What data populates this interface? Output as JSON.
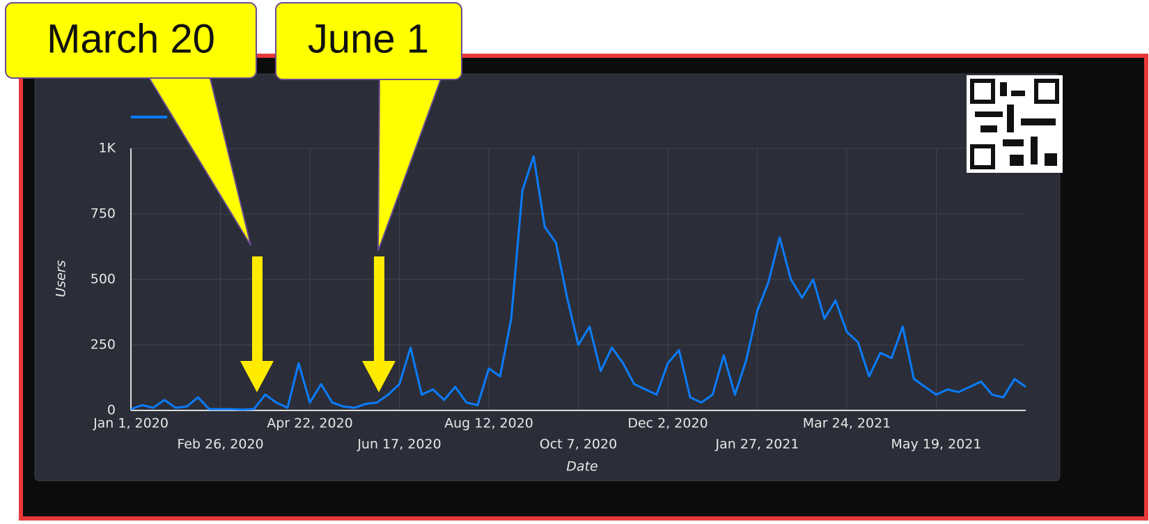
{
  "chart_data": {
    "type": "line",
    "annotations": [
      "March 20",
      "June 1"
    ],
    "x_label": "Date",
    "y_label": "Users",
    "x": [
      "2020-01-01",
      "2020-01-08",
      "2020-01-15",
      "2020-01-22",
      "2020-01-29",
      "2020-02-05",
      "2020-02-12",
      "2020-02-19",
      "2020-02-26",
      "2020-03-04",
      "2020-03-11",
      "2020-03-18",
      "2020-03-25",
      "2020-04-01",
      "2020-04-08",
      "2020-04-15",
      "2020-04-22",
      "2020-04-29",
      "2020-05-06",
      "2020-05-13",
      "2020-05-20",
      "2020-05-27",
      "2020-06-03",
      "2020-06-10",
      "2020-06-17",
      "2020-06-24",
      "2020-07-01",
      "2020-07-08",
      "2020-07-15",
      "2020-07-22",
      "2020-07-29",
      "2020-08-05",
      "2020-08-12",
      "2020-08-19",
      "2020-08-26",
      "2020-09-02",
      "2020-09-09",
      "2020-09-16",
      "2020-09-23",
      "2020-09-30",
      "2020-10-07",
      "2020-10-14",
      "2020-10-21",
      "2020-10-28",
      "2020-11-04",
      "2020-11-11",
      "2020-11-18",
      "2020-11-25",
      "2020-12-02",
      "2020-12-09",
      "2020-12-16",
      "2020-12-23",
      "2020-12-30",
      "2021-01-06",
      "2021-01-13",
      "2021-01-20",
      "2021-01-27",
      "2021-02-03",
      "2021-02-10",
      "2021-02-17",
      "2021-02-24",
      "2021-03-03",
      "2021-03-10",
      "2021-03-17",
      "2021-03-24",
      "2021-03-31",
      "2021-04-07",
      "2021-04-14",
      "2021-04-21",
      "2021-04-28",
      "2021-05-05",
      "2021-05-12",
      "2021-05-19",
      "2021-05-26",
      "2021-06-02",
      "2021-06-09",
      "2021-06-16",
      "2021-06-23",
      "2021-06-30",
      "2021-07-07",
      "2021-07-14"
    ],
    "series": [
      {
        "name": "Users",
        "color": "#0a7cff",
        "values": [
          5,
          20,
          10,
          40,
          10,
          15,
          50,
          5,
          5,
          5,
          3,
          5,
          60,
          30,
          10,
          180,
          30,
          100,
          30,
          15,
          10,
          25,
          30,
          60,
          100,
          240,
          60,
          80,
          40,
          90,
          30,
          20,
          160,
          130,
          350,
          840,
          970,
          700,
          640,
          430,
          250,
          320,
          150,
          240,
          180,
          100,
          80,
          60,
          180,
          230,
          50,
          30,
          60,
          210,
          60,
          190,
          380,
          490,
          660,
          500,
          430,
          500,
          350,
          420,
          300,
          260,
          130,
          220,
          200,
          320,
          120,
          90,
          60,
          80,
          70,
          90,
          110,
          60,
          50,
          120,
          90
        ]
      }
    ],
    "xlim": [
      "2020-01-01",
      "2021-07-14"
    ],
    "xticks": [
      {
        "value": "2020-01-01",
        "label": "Jan 1, 2020"
      },
      {
        "value": "2020-02-26",
        "label": "Feb 26, 2020"
      },
      {
        "value": "2020-04-22",
        "label": "Apr 22, 2020"
      },
      {
        "value": "2020-06-17",
        "label": "Jun 17, 2020"
      },
      {
        "value": "2020-08-12",
        "label": "Aug 12, 2020"
      },
      {
        "value": "2020-10-07",
        "label": "Oct 7, 2020"
      },
      {
        "value": "2020-12-02",
        "label": "Dec 2, 2020"
      },
      {
        "value": "2021-01-27",
        "label": "Jan 27, 2021"
      },
      {
        "value": "2021-03-24",
        "label": "Mar 24, 2021"
      },
      {
        "value": "2021-05-19",
        "label": "May 19, 2021"
      }
    ],
    "ylim": [
      0,
      1000
    ],
    "yticks": [
      0,
      250,
      500,
      750,
      {
        "value": 1000,
        "label": "1K"
      }
    ],
    "grid": true
  }
}
